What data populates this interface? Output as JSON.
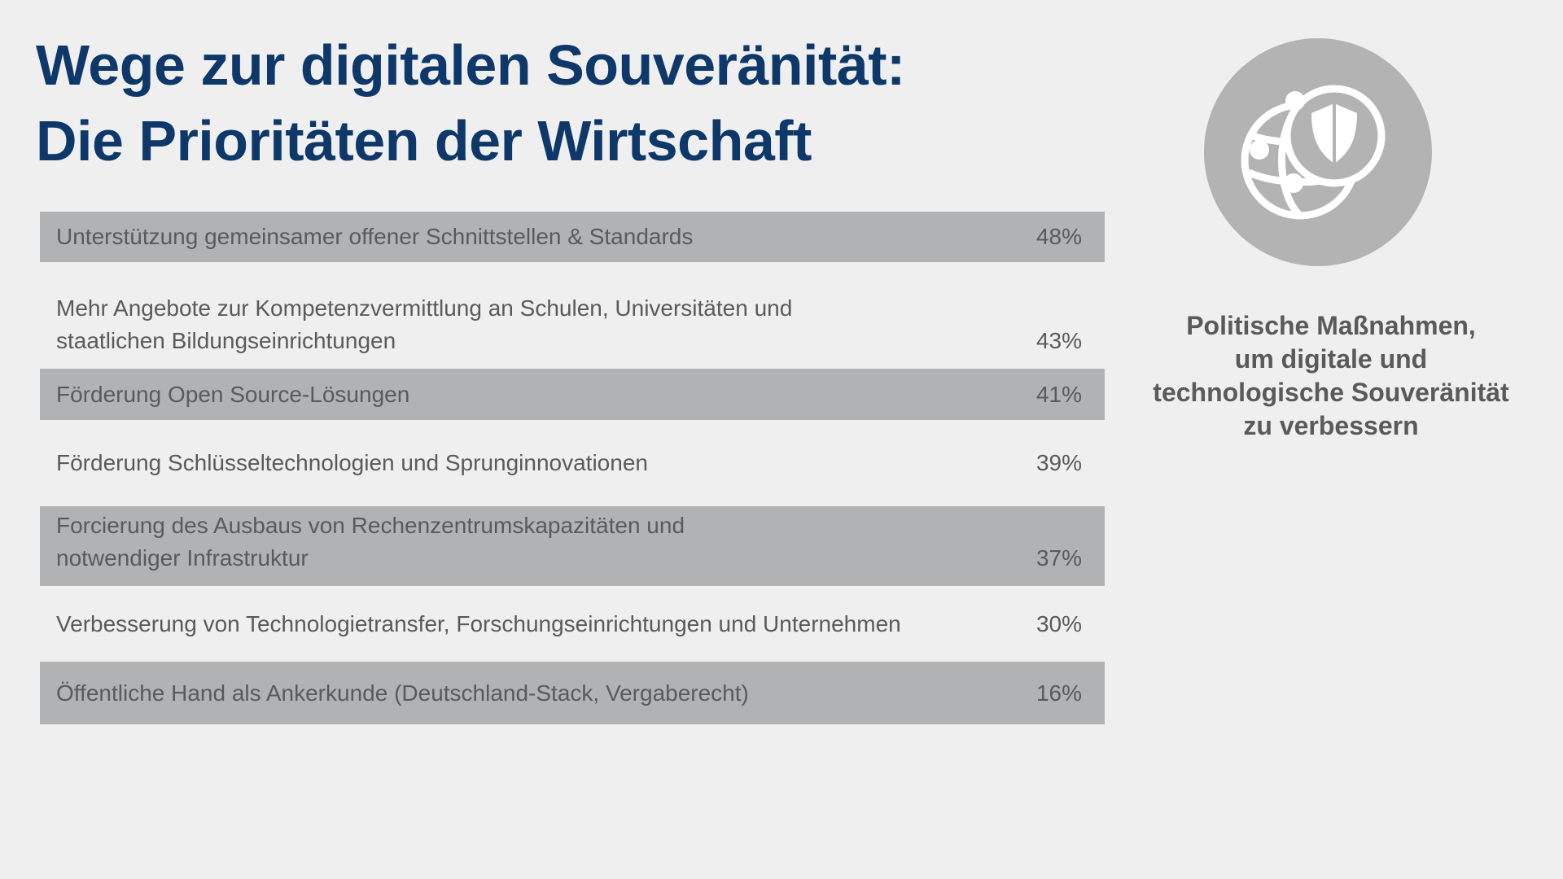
{
  "header": {
    "title": [
      "Wege zur digitalen Souveränität:",
      "Die Prioritäten der Wirtschaft"
    ]
  },
  "table": {
    "rows": [
      {
        "lines": [
          "Unterstützung gemeinsamer offener Schnittstellen & Standards"
        ],
        "value": "48%"
      },
      {
        "lines": [
          "Mehr Angebote zur Kompetenzvermittlung an Schulen, Universitäten und",
          "staatlichen Bildungseinrichtungen"
        ],
        "value": "43%"
      },
      {
        "lines": [
          "Förderung Open Source-Lösungen"
        ],
        "value": "41%"
      },
      {
        "lines": [
          "Förderung Schlüsseltechnologien und Sprunginnovationen"
        ],
        "value": "39%"
      },
      {
        "lines": [
          "Forcierung des Ausbaus von Rechenzentrumskapazitäten und",
          "notwendiger Infrastruktur"
        ],
        "value": "37%"
      },
      {
        "lines": [
          "Verbesserung von Technologietransfer, Forschungseinrichtungen und Unternehmen"
        ],
        "value": "30%"
      },
      {
        "lines": [
          "Öffentliche Hand als Ankerkunde (Deutschland-Stack, Vergaberecht)"
        ],
        "value": "16%"
      }
    ]
  },
  "sidebar": {
    "caption": [
      "Politische Maßnahmen,",
      "um digitale und",
      "technologische Souveränität",
      "zu verbessern"
    ]
  }
}
